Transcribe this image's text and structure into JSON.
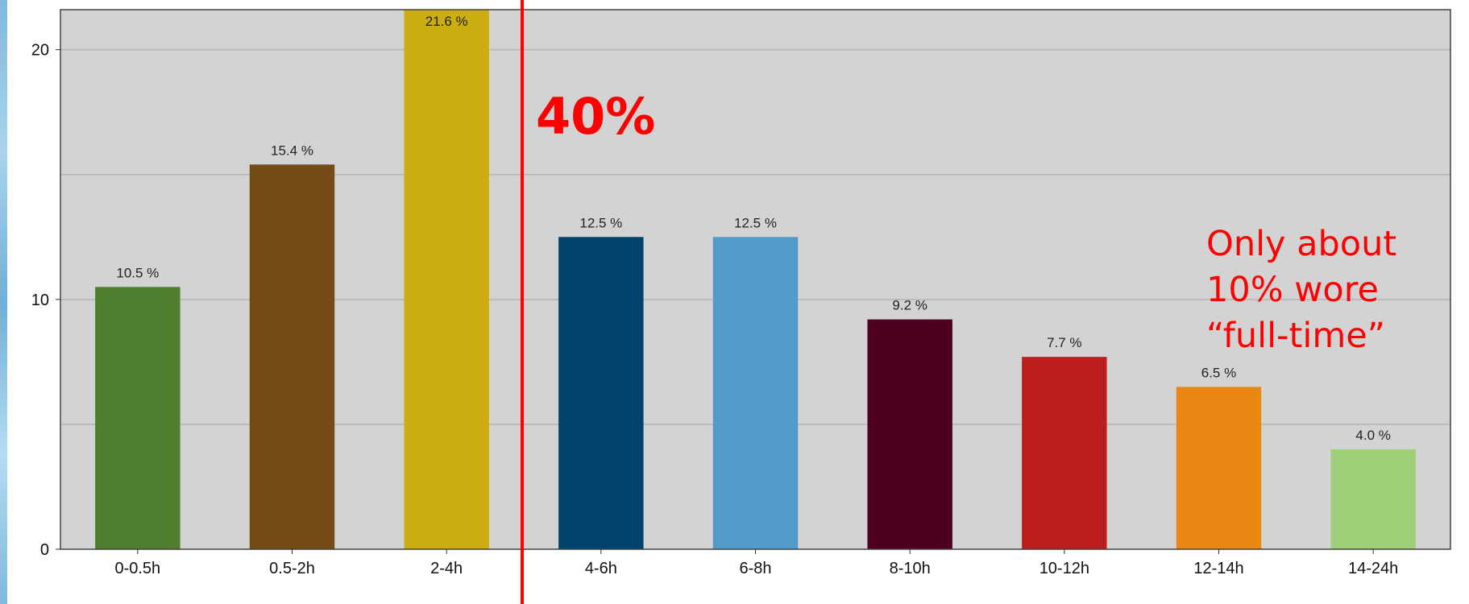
{
  "chart_data": {
    "type": "bar",
    "title": "",
    "xlabel": "",
    "ylabel": "",
    "categories": [
      "0-0.5h",
      "0.5-2h",
      "2-4h",
      "4-6h",
      "6-8h",
      "8-10h",
      "10-12h",
      "12-14h",
      "14-24h"
    ],
    "values": [
      10.5,
      15.4,
      21.6,
      12.5,
      12.5,
      9.2,
      7.7,
      6.5,
      4.0
    ],
    "value_labels": [
      "10.5 %",
      "15.4 %",
      "21.6 %",
      "12.5 %",
      "12.5 %",
      "9.2 %",
      "7.7 %",
      "6.5 %",
      "4.0 %"
    ],
    "colors": [
      "#4f7f2e",
      "#744a15",
      "#cdae10",
      "#01436b",
      "#529bc9",
      "#4e0020",
      "#bb1e1f",
      "#e88813",
      "#9fcf78"
    ],
    "yticks": [
      {
        "value": 0,
        "label": "0"
      },
      {
        "value": 10,
        "label": "10"
      },
      {
        "value": 20,
        "label": "20"
      }
    ],
    "ylim": [
      0,
      21.6
    ],
    "grid": true,
    "grid_values": [
      5,
      10,
      15,
      20
    ],
    "plot_background": "#d3d3d3",
    "divider": {
      "between": [
        "2-4h",
        "4-6h"
      ],
      "color": "#ff0000"
    },
    "annotations": [
      {
        "text": "40%",
        "near": "after divider, upper area"
      },
      {
        "text": "Only about",
        "near": "upper right"
      },
      {
        "text": "10% wore",
        "near": "upper right"
      },
      {
        "text": "“full-time”",
        "near": "upper right"
      }
    ]
  }
}
